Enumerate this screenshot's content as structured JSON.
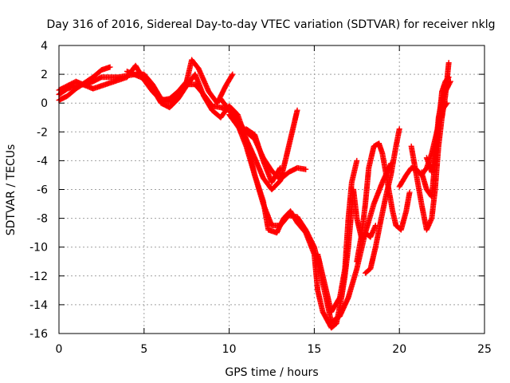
{
  "chart_data": {
    "type": "scatter",
    "title": "Day 316 of 2016, Sidereal Day-to-day VTEC variation (SDTVAR) for receiver nklg",
    "xlabel": "GPS time / hours",
    "ylabel": "SDTVAR / TECUs",
    "xlim": [
      0,
      25
    ],
    "ylim": [
      -16,
      4
    ],
    "xticks": [
      0,
      5,
      10,
      15,
      20,
      25
    ],
    "yticks": [
      -16,
      -14,
      -12,
      -10,
      -8,
      -6,
      -4,
      -2,
      0,
      2,
      4
    ],
    "grid": true,
    "marker": "+",
    "color": "#ff0000",
    "series": [
      {
        "values": [
          [
            0.0,
            0.2
          ],
          [
            0.5,
            0.5
          ],
          [
            1.0,
            1.0
          ],
          [
            1.5,
            1.4
          ],
          [
            2.0,
            1.8
          ],
          [
            2.5,
            2.3
          ],
          [
            3.0,
            2.5
          ]
        ]
      },
      {
        "values": [
          [
            0.0,
            0.6
          ],
          [
            0.5,
            1.0
          ],
          [
            1.0,
            1.2
          ],
          [
            1.5,
            1.3
          ],
          [
            2.0,
            1.5
          ],
          [
            2.5,
            1.8
          ],
          [
            3.0,
            1.8
          ],
          [
            3.5,
            1.8
          ],
          [
            4.0,
            1.9
          ],
          [
            4.5,
            2.0
          ],
          [
            5.0,
            2.0
          ],
          [
            5.5,
            1.3
          ],
          [
            6.0,
            0.3
          ],
          [
            6.5,
            0.1
          ],
          [
            7.0,
            0.6
          ],
          [
            7.5,
            1.3
          ],
          [
            8.0,
            1.3
          ],
          [
            8.5,
            0.6
          ],
          [
            9.0,
            -0.2
          ],
          [
            9.5,
            -0.3
          ],
          [
            10.0,
            -0.5
          ],
          [
            10.5,
            -1.2
          ],
          [
            11.0,
            -2.0
          ],
          [
            11.5,
            -2.5
          ],
          [
            12.0,
            -3.8
          ],
          [
            12.5,
            -4.7
          ],
          [
            13.0,
            -5.3
          ],
          [
            13.5,
            -4.8
          ],
          [
            14.0,
            -4.5
          ],
          [
            14.5,
            -4.6
          ]
        ]
      },
      {
        "values": [
          [
            0.0,
            0.9
          ],
          [
            1.0,
            1.5
          ],
          [
            2.0,
            1.0
          ],
          [
            3.0,
            1.4
          ],
          [
            4.0,
            1.8
          ],
          [
            4.5,
            2.6
          ],
          [
            5.0,
            1.6
          ],
          [
            5.5,
            0.8
          ],
          [
            6.0,
            0.2
          ],
          [
            6.5,
            0.3
          ],
          [
            7.0,
            0.8
          ],
          [
            7.5,
            1.5
          ],
          [
            7.8,
            3.0
          ],
          [
            8.2,
            2.4
          ],
          [
            8.8,
            0.8
          ],
          [
            9.3,
            0.0
          ],
          [
            9.8,
            1.2
          ],
          [
            10.2,
            2.0
          ]
        ]
      },
      {
        "values": [
          [
            4.0,
            2.2
          ],
          [
            5.0,
            1.7
          ],
          [
            5.5,
            1.0
          ],
          [
            6.0,
            0.0
          ],
          [
            6.5,
            -0.3
          ],
          [
            7.0,
            0.3
          ],
          [
            7.5,
            1.2
          ],
          [
            8.0,
            2.0
          ],
          [
            8.5,
            0.5
          ],
          [
            9.0,
            -0.5
          ],
          [
            9.5,
            -1.0
          ],
          [
            10.0,
            -0.2
          ],
          [
            10.5,
            -0.8
          ],
          [
            11.0,
            -2.5
          ],
          [
            11.5,
            -5.0
          ],
          [
            12.0,
            -7.0
          ],
          [
            12.5,
            -8.5
          ],
          [
            13.0,
            -8.5
          ],
          [
            13.5,
            -7.8
          ],
          [
            14.0,
            -7.9
          ],
          [
            14.5,
            -8.8
          ],
          [
            15.0,
            -10.0
          ],
          [
            15.5,
            -12.5
          ],
          [
            16.0,
            -15.2
          ],
          [
            16.5,
            -14.8
          ],
          [
            17.0,
            -13.5
          ],
          [
            17.5,
            -11.5
          ],
          [
            18.0,
            -9.0
          ],
          [
            18.5,
            -7.0
          ],
          [
            19.0,
            -5.5
          ],
          [
            19.5,
            -4.2
          ]
        ]
      },
      {
        "values": [
          [
            9.5,
            0.3
          ],
          [
            10.0,
            -0.5
          ],
          [
            10.5,
            -1.5
          ],
          [
            11.0,
            -3.0
          ],
          [
            11.5,
            -5.0
          ],
          [
            12.0,
            -6.8
          ],
          [
            12.3,
            -8.8
          ],
          [
            12.8,
            -9.0
          ],
          [
            13.2,
            -8.0
          ],
          [
            13.6,
            -7.5
          ],
          [
            14.0,
            -8.3
          ],
          [
            14.5,
            -9.0
          ],
          [
            15.0,
            -10.5
          ],
          [
            15.2,
            -13.0
          ],
          [
            15.5,
            -14.5
          ],
          [
            16.0,
            -15.6
          ],
          [
            16.3,
            -15.3
          ],
          [
            16.6,
            -13.5
          ],
          [
            16.8,
            -12.0
          ],
          [
            17.0,
            -10.0
          ],
          [
            17.3,
            -6.0
          ],
          [
            17.5,
            -8.0
          ],
          [
            17.8,
            -9.5
          ],
          [
            18.0,
            -9.0
          ],
          [
            18.3,
            -9.3
          ],
          [
            18.6,
            -8.5
          ]
        ]
      },
      {
        "values": [
          [
            10.0,
            -0.8
          ],
          [
            10.5,
            -1.6
          ],
          [
            11.0,
            -2.5
          ],
          [
            11.5,
            -3.8
          ],
          [
            12.0,
            -5.2
          ],
          [
            12.5,
            -6.0
          ],
          [
            13.0,
            -5.4
          ],
          [
            13.3,
            -4.0
          ],
          [
            13.7,
            -2.0
          ],
          [
            14.0,
            -0.5
          ]
        ]
      },
      {
        "values": [
          [
            11.0,
            -1.8
          ],
          [
            11.5,
            -2.2
          ],
          [
            12.0,
            -4.0
          ],
          [
            12.5,
            -5.5
          ],
          [
            13.0,
            -4.5
          ]
        ]
      },
      {
        "values": [
          [
            15.2,
            -10.5
          ],
          [
            15.5,
            -12.0
          ],
          [
            15.8,
            -13.5
          ],
          [
            16.0,
            -14.5
          ],
          [
            16.5,
            -13.5
          ],
          [
            16.8,
            -11.5
          ],
          [
            17.0,
            -8.0
          ],
          [
            17.2,
            -5.5
          ],
          [
            17.5,
            -4.0
          ]
        ]
      },
      {
        "values": [
          [
            17.5,
            -11.0
          ],
          [
            17.8,
            -9.0
          ],
          [
            18.0,
            -7.0
          ],
          [
            18.2,
            -4.5
          ],
          [
            18.5,
            -3.0
          ],
          [
            18.8,
            -2.8
          ],
          [
            19.0,
            -3.5
          ],
          [
            19.3,
            -5.5
          ],
          [
            19.6,
            -7.5
          ],
          [
            19.8,
            -8.5
          ],
          [
            20.1,
            -8.8
          ],
          [
            20.4,
            -7.5
          ],
          [
            20.6,
            -6.2
          ]
        ]
      },
      {
        "values": [
          [
            18.0,
            -11.8
          ],
          [
            18.3,
            -11.5
          ],
          [
            18.6,
            -10.0
          ],
          [
            18.9,
            -8.2
          ],
          [
            19.2,
            -6.5
          ],
          [
            19.5,
            -5.0
          ],
          [
            19.8,
            -3.0
          ],
          [
            20.0,
            -1.8
          ]
        ]
      },
      {
        "values": [
          [
            20.0,
            -5.8
          ],
          [
            20.4,
            -5.0
          ],
          [
            20.7,
            -4.5
          ],
          [
            21.0,
            -4.6
          ],
          [
            21.3,
            -5.0
          ],
          [
            21.6,
            -4.5
          ],
          [
            21.9,
            -3.5
          ],
          [
            22.2,
            -2.0
          ],
          [
            22.5,
            -0.5
          ],
          [
            22.8,
            0.0
          ]
        ]
      },
      {
        "values": [
          [
            20.7,
            -3.0
          ],
          [
            21.0,
            -5.0
          ],
          [
            21.3,
            -7.0
          ],
          [
            21.6,
            -8.8
          ],
          [
            21.9,
            -8.0
          ],
          [
            22.1,
            -6.0
          ],
          [
            22.3,
            -3.0
          ],
          [
            22.5,
            -1.0
          ],
          [
            22.7,
            0.5
          ],
          [
            22.9,
            2.8
          ]
        ]
      },
      {
        "values": [
          [
            21.3,
            -4.8
          ],
          [
            21.6,
            -6.0
          ],
          [
            21.9,
            -6.5
          ],
          [
            22.1,
            -4.0
          ],
          [
            22.3,
            -1.5
          ],
          [
            22.5,
            0.8
          ],
          [
            22.7,
            1.5
          ],
          [
            22.9,
            1.8
          ]
        ]
      },
      {
        "values": [
          [
            21.6,
            -3.8
          ],
          [
            21.9,
            -4.8
          ],
          [
            22.1,
            -3.5
          ],
          [
            22.3,
            -1.0
          ],
          [
            22.5,
            0.3
          ],
          [
            22.7,
            0.8
          ],
          [
            23.0,
            1.5
          ]
        ]
      }
    ]
  }
}
